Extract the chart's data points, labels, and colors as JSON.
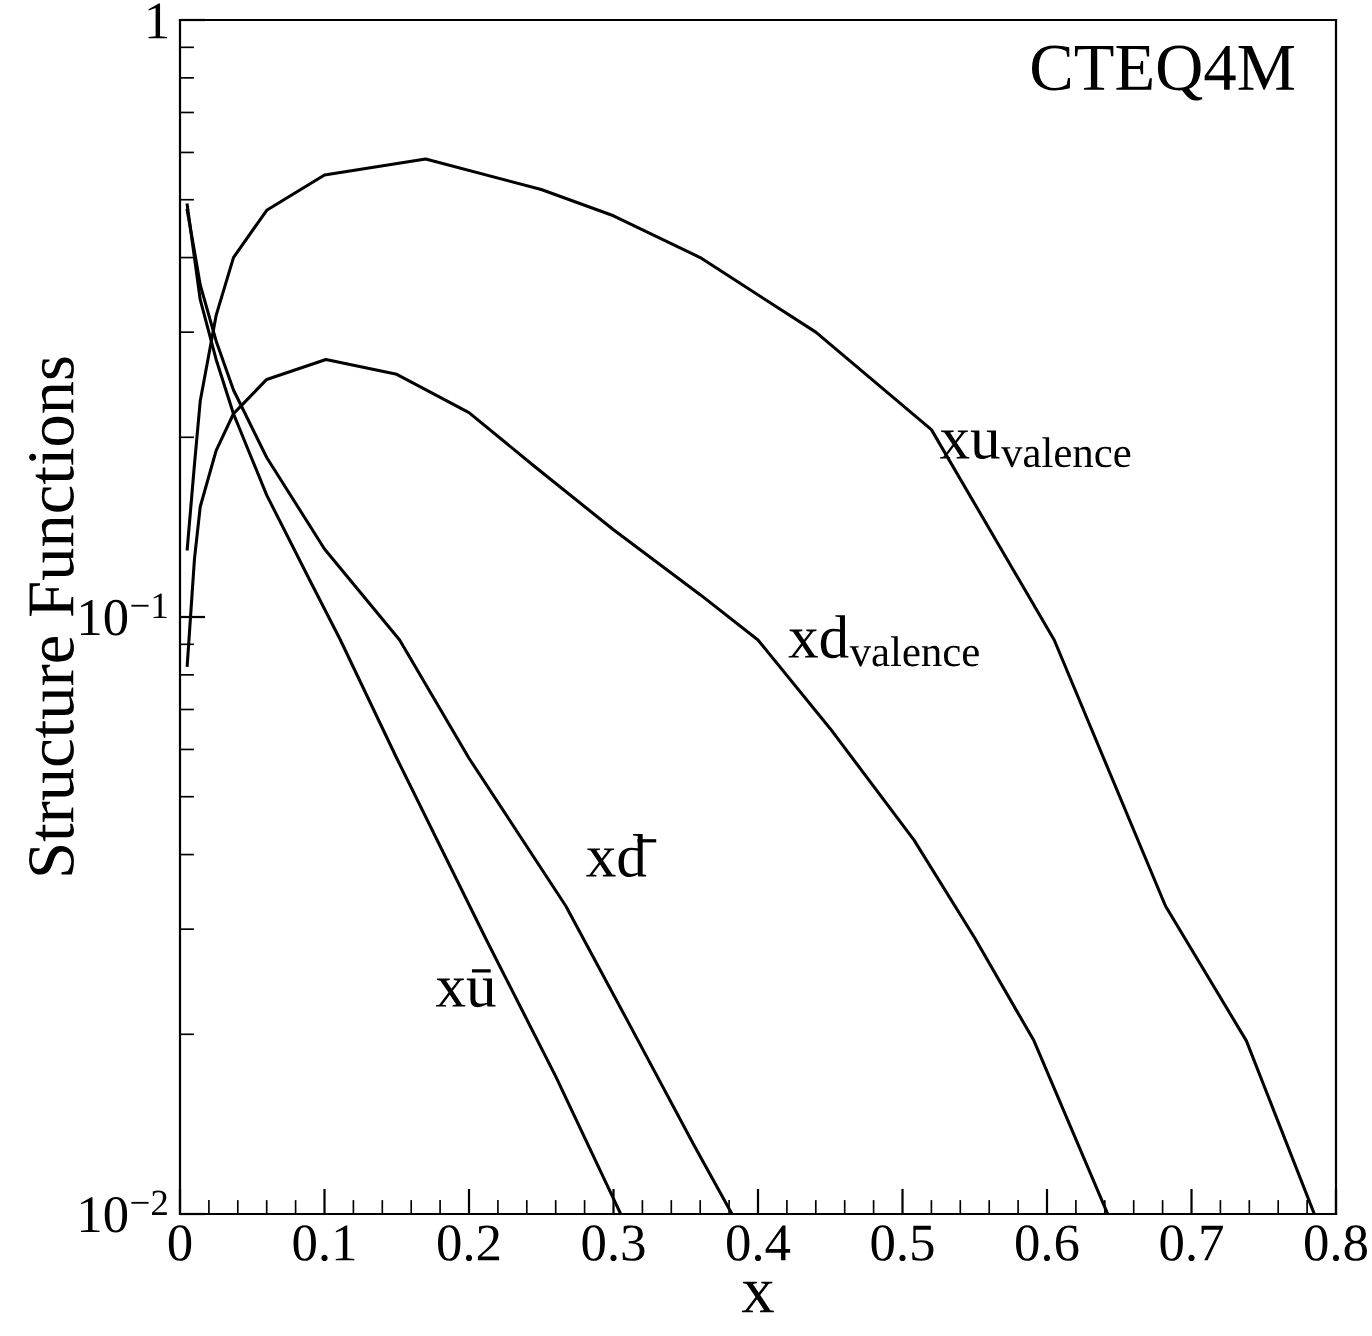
{
  "chart_data": {
    "type": "line",
    "xlabel": "x",
    "ylabel": "Structure Functions",
    "log": "y",
    "xlim": [
      0,
      0.8
    ],
    "ylim": [
      0.01,
      1
    ],
    "xticks": [
      0,
      0.1,
      0.2,
      0.3,
      0.4,
      0.5,
      0.6,
      0.7,
      0.8
    ],
    "yticks": [
      {
        "value": 0.01,
        "label": "10$^{−2}$"
      },
      {
        "value": 0.1,
        "label": "10$^{−1}$"
      },
      1
    ],
    "grid": false,
    "marker": "none",
    "line_style": "solid",
    "series": [
      {
        "color": "#000000",
        "x": [
          0.005,
          0.01,
          0.014,
          0.025,
          0.037,
          0.06,
          0.1,
          0.17,
          0.25,
          0.3,
          0.36,
          0.44,
          0.52,
          0.605,
          0.682,
          0.738,
          0.785
        ],
        "values": [
          0.13,
          0.18,
          0.23,
          0.32,
          0.4,
          0.48,
          0.55,
          0.585,
          0.52,
          0.47,
          0.4,
          0.3,
          0.206,
          0.0915,
          0.0328,
          0.0195,
          0.01
        ]
      },
      {
        "color": "#000000",
        "x": [
          0.005,
          0.01,
          0.014,
          0.025,
          0.037,
          0.06,
          0.101,
          0.15,
          0.2,
          0.245,
          0.3,
          0.36,
          0.4,
          0.45,
          0.508,
          0.55,
          0.591,
          0.642
        ],
        "values": [
          0.083,
          0.125,
          0.153,
          0.19,
          0.219,
          0.25,
          0.27,
          0.255,
          0.22,
          0.179,
          0.14,
          0.109,
          0.0915,
          0.065,
          0.0423,
          0.029,
          0.0195,
          0.01
        ]
      },
      {
        "color": "#000000",
        "x": [
          0.005,
          0.01,
          0.014,
          0.025,
          0.037,
          0.06,
          0.1,
          0.152,
          0.2,
          0.267,
          0.31,
          0.356,
          0.382
        ],
        "values": [
          0.48,
          0.41,
          0.36,
          0.29,
          0.24,
          0.185,
          0.13,
          0.0915,
          0.058,
          0.0328,
          0.021,
          0.013,
          0.01
        ]
      },
      {
        "color": "#000000",
        "x": [
          0.005,
          0.01,
          0.014,
          0.025,
          0.037,
          0.06,
          0.09,
          0.111,
          0.15,
          0.212,
          0.26,
          0.305
        ],
        "values": [
          0.49,
          0.4,
          0.34,
          0.27,
          0.219,
          0.16,
          0.115,
          0.0915,
          0.058,
          0.0288,
          0.017,
          0.01
        ]
      }
    ],
    "annotations": [
      "CTEQ4M",
      "xu$_{valence}$",
      "xd$_{valence}$",
      "xd̄",
      "xū"
    ]
  }
}
